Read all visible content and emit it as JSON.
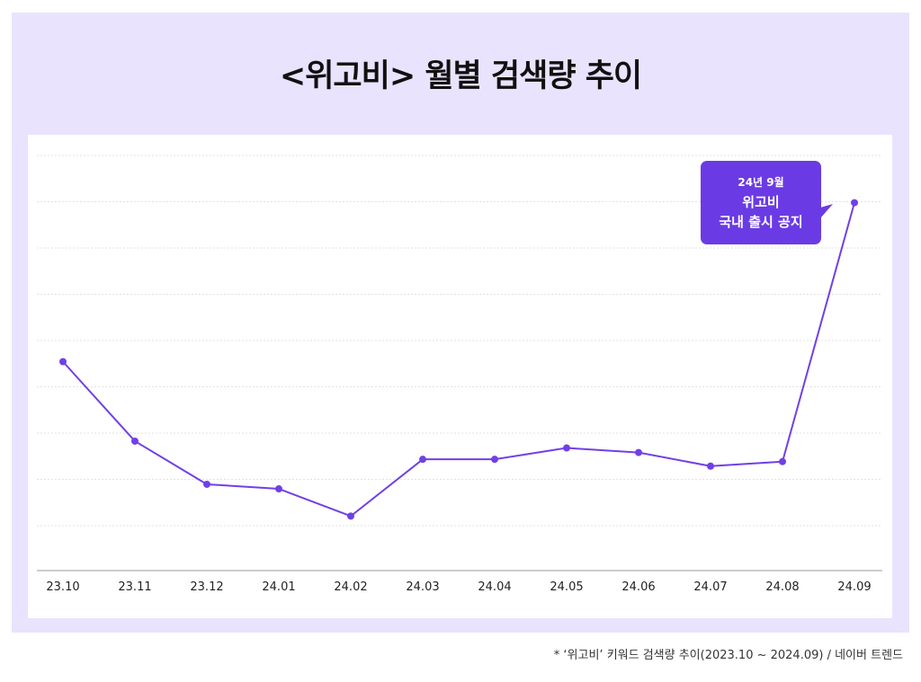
{
  "title": "<위고비> 월별 검색량 추이",
  "footnote": "* ‘위고비’ 키워드 검색량 추이(2023.10 ~ 2024.09) / 네이버 트렌드",
  "colors": {
    "panel_background": "#e9e3fd",
    "line": "#7040e6",
    "callout": "#6a3be4"
  },
  "callout": {
    "line1": "24년 9월",
    "line2": "위고비",
    "line3": "국내 출시 공지"
  },
  "chart_data": {
    "type": "line",
    "title": "<위고비> 월별 검색량 추이",
    "categories": [
      "23.10",
      "23.11",
      "23.12",
      "24.01",
      "24.02",
      "24.03",
      "24.04",
      "24.05",
      "24.06",
      "24.07",
      "24.08",
      "24.09"
    ],
    "series": [
      {
        "values": [
          46,
          28.5,
          19,
          18,
          12,
          24.5,
          24.5,
          27,
          26,
          23,
          24,
          81
        ]
      }
    ],
    "ylim": [
      0,
      92
    ],
    "grid": true,
    "y_tick_labels_shown": false,
    "annotations": [
      {
        "category": "24.09",
        "text": [
          "24년 9월",
          "위고비",
          "국내 출시 공지"
        ]
      }
    ]
  }
}
